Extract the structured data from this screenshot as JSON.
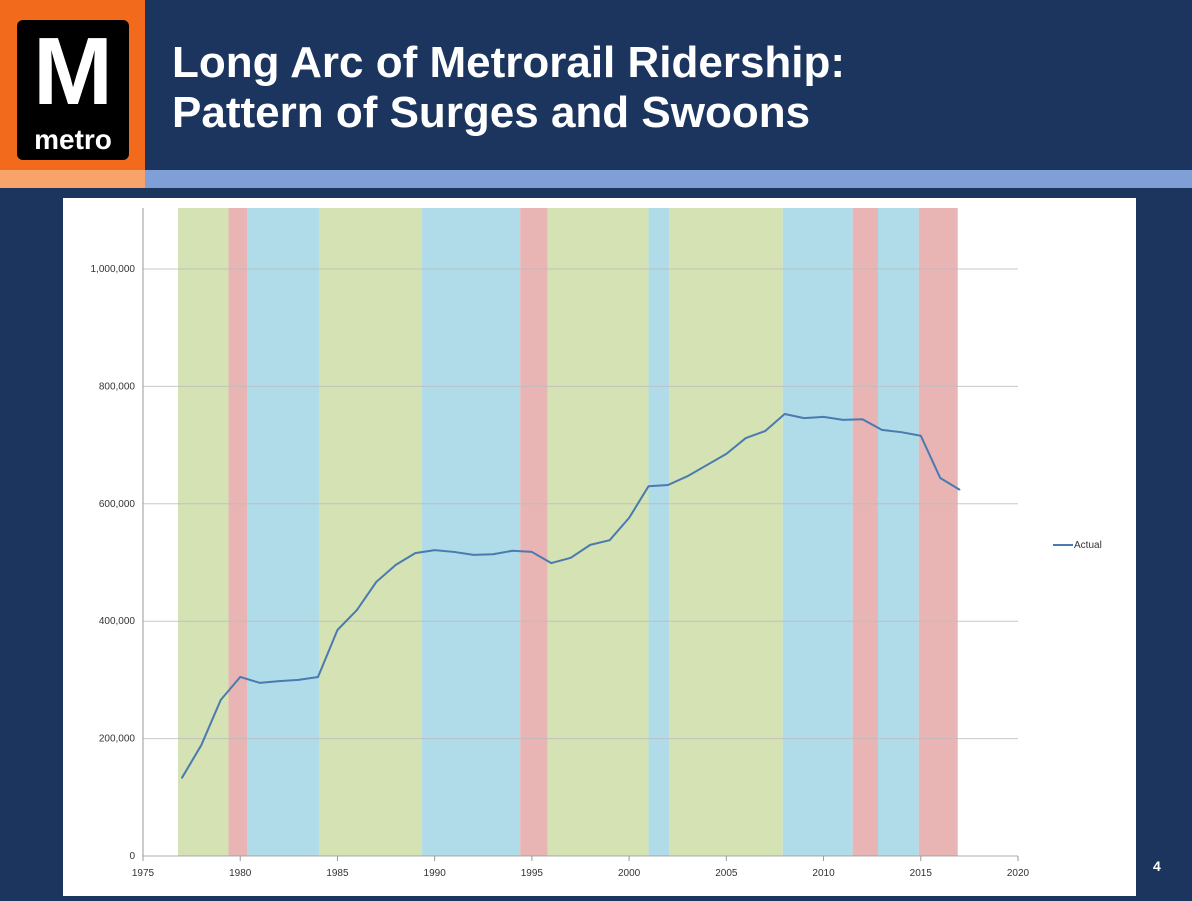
{
  "header": {
    "logo_letter": "M",
    "logo_word": "metro",
    "title_line1": "Long Arc of Metrorail Ridership:",
    "title_line2": "Pattern of Surges and Swoons"
  },
  "page_number": "4",
  "chart_data": {
    "type": "line",
    "title": "",
    "xlabel": "",
    "ylabel": "",
    "xlim": [
      1975,
      2020
    ],
    "ylim": [
      0,
      1100000
    ],
    "xticks": [
      "1975",
      "1980",
      "1985",
      "1990",
      "1995",
      "2000",
      "2005",
      "2010",
      "2015",
      "2020"
    ],
    "yticks": [
      {
        "v": 0,
        "label": "0"
      },
      {
        "v": 200000,
        "label": "200,000"
      },
      {
        "v": 400000,
        "label": "400,000"
      },
      {
        "v": 600000,
        "label": "600,000"
      },
      {
        "v": 800000,
        "label": "800,000"
      },
      {
        "v": 1000000,
        "label": "1,000,000"
      }
    ],
    "grid": true,
    "legend": {
      "position": "right",
      "entries": [
        "Actual"
      ]
    },
    "series": [
      {
        "name": "Actual",
        "color": "#4a7ab0",
        "x": [
          1977,
          1978,
          1979,
          1980,
          1981,
          1982,
          1983,
          1984,
          1985,
          1986,
          1987,
          1988,
          1989,
          1990,
          1991,
          1992,
          1993,
          1994,
          1995,
          1996,
          1997,
          1998,
          1999,
          2000,
          2001,
          2002,
          2003,
          2004,
          2005,
          2006,
          2007,
          2008,
          2009,
          2010,
          2011,
          2012,
          2013,
          2014,
          2015,
          2016,
          2017
        ],
        "y": [
          133000,
          189000,
          266000,
          305000,
          295000,
          298000,
          300000,
          305000,
          385000,
          419000,
          467000,
          496000,
          516000,
          521000,
          518000,
          513000,
          514000,
          520000,
          518000,
          499000,
          508000,
          530000,
          538000,
          576000,
          630000,
          632000,
          647000,
          666000,
          685000,
          712000,
          724000,
          753000,
          746000,
          748000,
          743000,
          744000,
          726000,
          722000,
          716000,
          644000,
          624000
        ]
      }
    ],
    "bands": [
      {
        "from": 1976.8,
        "to": 1979.4,
        "type": "surge",
        "color": "#d4e2b4"
      },
      {
        "from": 1979.4,
        "to": 1980.35,
        "type": "decline",
        "color": "#e8b4b4"
      },
      {
        "from": 1980.35,
        "to": 1984.05,
        "type": "plateau",
        "color": "#b0dbe8"
      },
      {
        "from": 1984.05,
        "to": 1989.35,
        "type": "surge",
        "color": "#d4e2b4"
      },
      {
        "from": 1989.35,
        "to": 1994.4,
        "type": "plateau",
        "color": "#b0dbe8"
      },
      {
        "from": 1994.4,
        "to": 1995.8,
        "type": "decline",
        "color": "#e8b4b4"
      },
      {
        "from": 1995.8,
        "to": 2001.0,
        "type": "surge",
        "color": "#d4e2b4"
      },
      {
        "from": 2001.0,
        "to": 2002.05,
        "type": "plateau",
        "color": "#b0dbe8"
      },
      {
        "from": 2002.05,
        "to": 2007.9,
        "type": "surge",
        "color": "#d4e2b4"
      },
      {
        "from": 2007.9,
        "to": 2011.5,
        "type": "plateau",
        "color": "#b0dbe8"
      },
      {
        "from": 2011.5,
        "to": 2012.8,
        "type": "decline",
        "color": "#e8b4b4"
      },
      {
        "from": 2012.8,
        "to": 2014.9,
        "type": "plateau",
        "color": "#b0dbe8"
      },
      {
        "from": 2014.9,
        "to": 2016.9,
        "type": "decline",
        "color": "#e8b4b4"
      }
    ]
  }
}
